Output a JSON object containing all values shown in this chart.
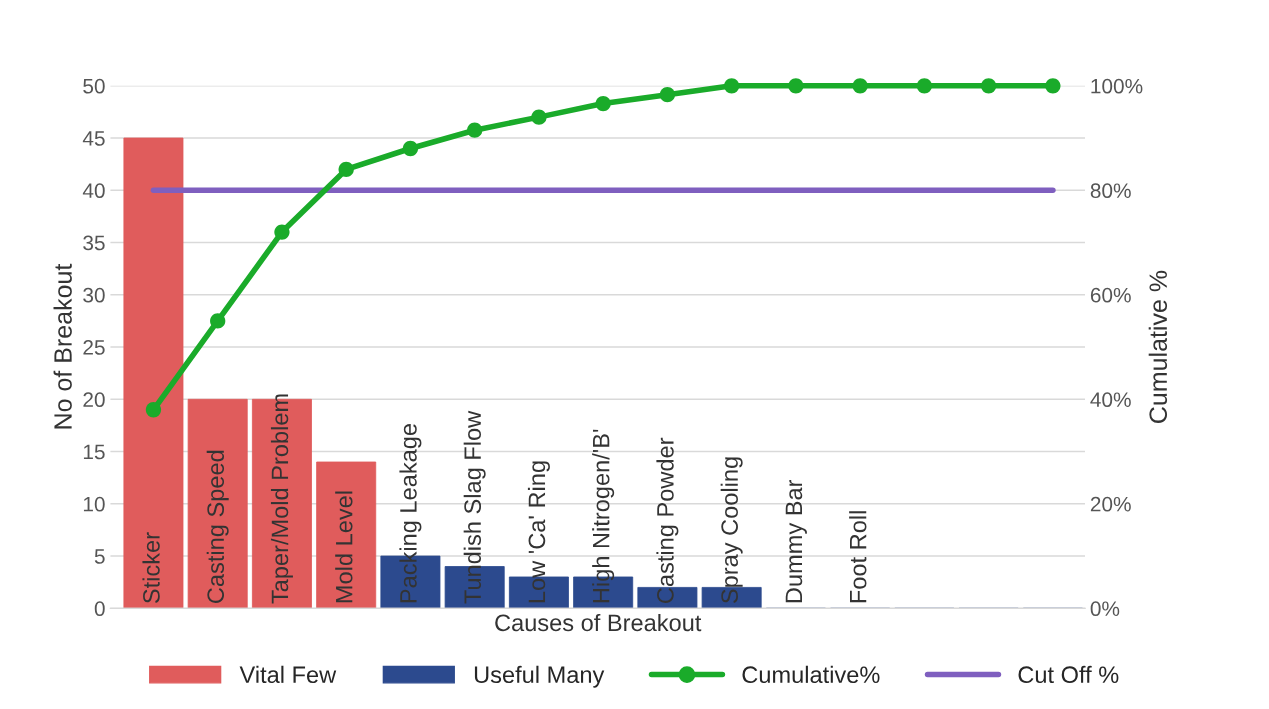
{
  "chart_data": {
    "type": "bar",
    "xlabel": "Causes of Breakout",
    "ylabel": "No of Breakout",
    "y2label": "Cumulative %",
    "categories": [
      "Sticker",
      "Casting Speed",
      "Taper/Mold Problem",
      "Mold Level",
      "Packing Leakage",
      "Tundish Slag Flow",
      "Low 'Ca' Ring",
      "High Nitrogen/'B'",
      "Casting Powder",
      "Spray Cooling",
      "Dummy Bar",
      "Foot Roll",
      null,
      null,
      null
    ],
    "series": [
      {
        "name": "Vital Few",
        "color": "#e05c5c",
        "values": [
          45,
          20,
          20,
          14,
          null,
          null,
          null,
          null,
          null,
          null,
          null,
          null,
          null,
          null,
          null
        ]
      },
      {
        "name": "Useful Many",
        "color": "#2c4a8e",
        "values": [
          null,
          null,
          null,
          null,
          5,
          4,
          3,
          3,
          2,
          2,
          0,
          0,
          0,
          0,
          0
        ]
      },
      {
        "name": "Cumulative%",
        "type": "line",
        "axis": "y2",
        "marker": "circle",
        "color": "#1aab2a",
        "values": [
          38,
          55,
          72,
          84,
          88,
          91.5,
          94,
          96.6,
          98.3,
          100,
          100,
          100,
          100,
          100,
          100
        ]
      },
      {
        "name": "Cut Off %",
        "type": "line",
        "axis": "y2",
        "marker": "none",
        "color": "#7f5fbf",
        "values": [
          80,
          80,
          80,
          80,
          80,
          80,
          80,
          80,
          80,
          80,
          80,
          80,
          80,
          80,
          80
        ]
      }
    ],
    "ylim": [
      0,
      50
    ],
    "yticks": [
      0,
      5,
      10,
      15,
      20,
      25,
      30,
      35,
      40,
      45,
      50
    ],
    "y2lim": [
      0,
      100
    ],
    "y2ticks": [
      {
        "value": 0,
        "label": "0%"
      },
      {
        "value": 20,
        "label": "20%"
      },
      {
        "value": 40,
        "label": "40%"
      },
      {
        "value": 60,
        "label": "60%"
      },
      {
        "value": 80,
        "label": "80%"
      },
      {
        "value": 100,
        "label": "100%"
      }
    ],
    "grid": "y",
    "legend": "bottom"
  }
}
